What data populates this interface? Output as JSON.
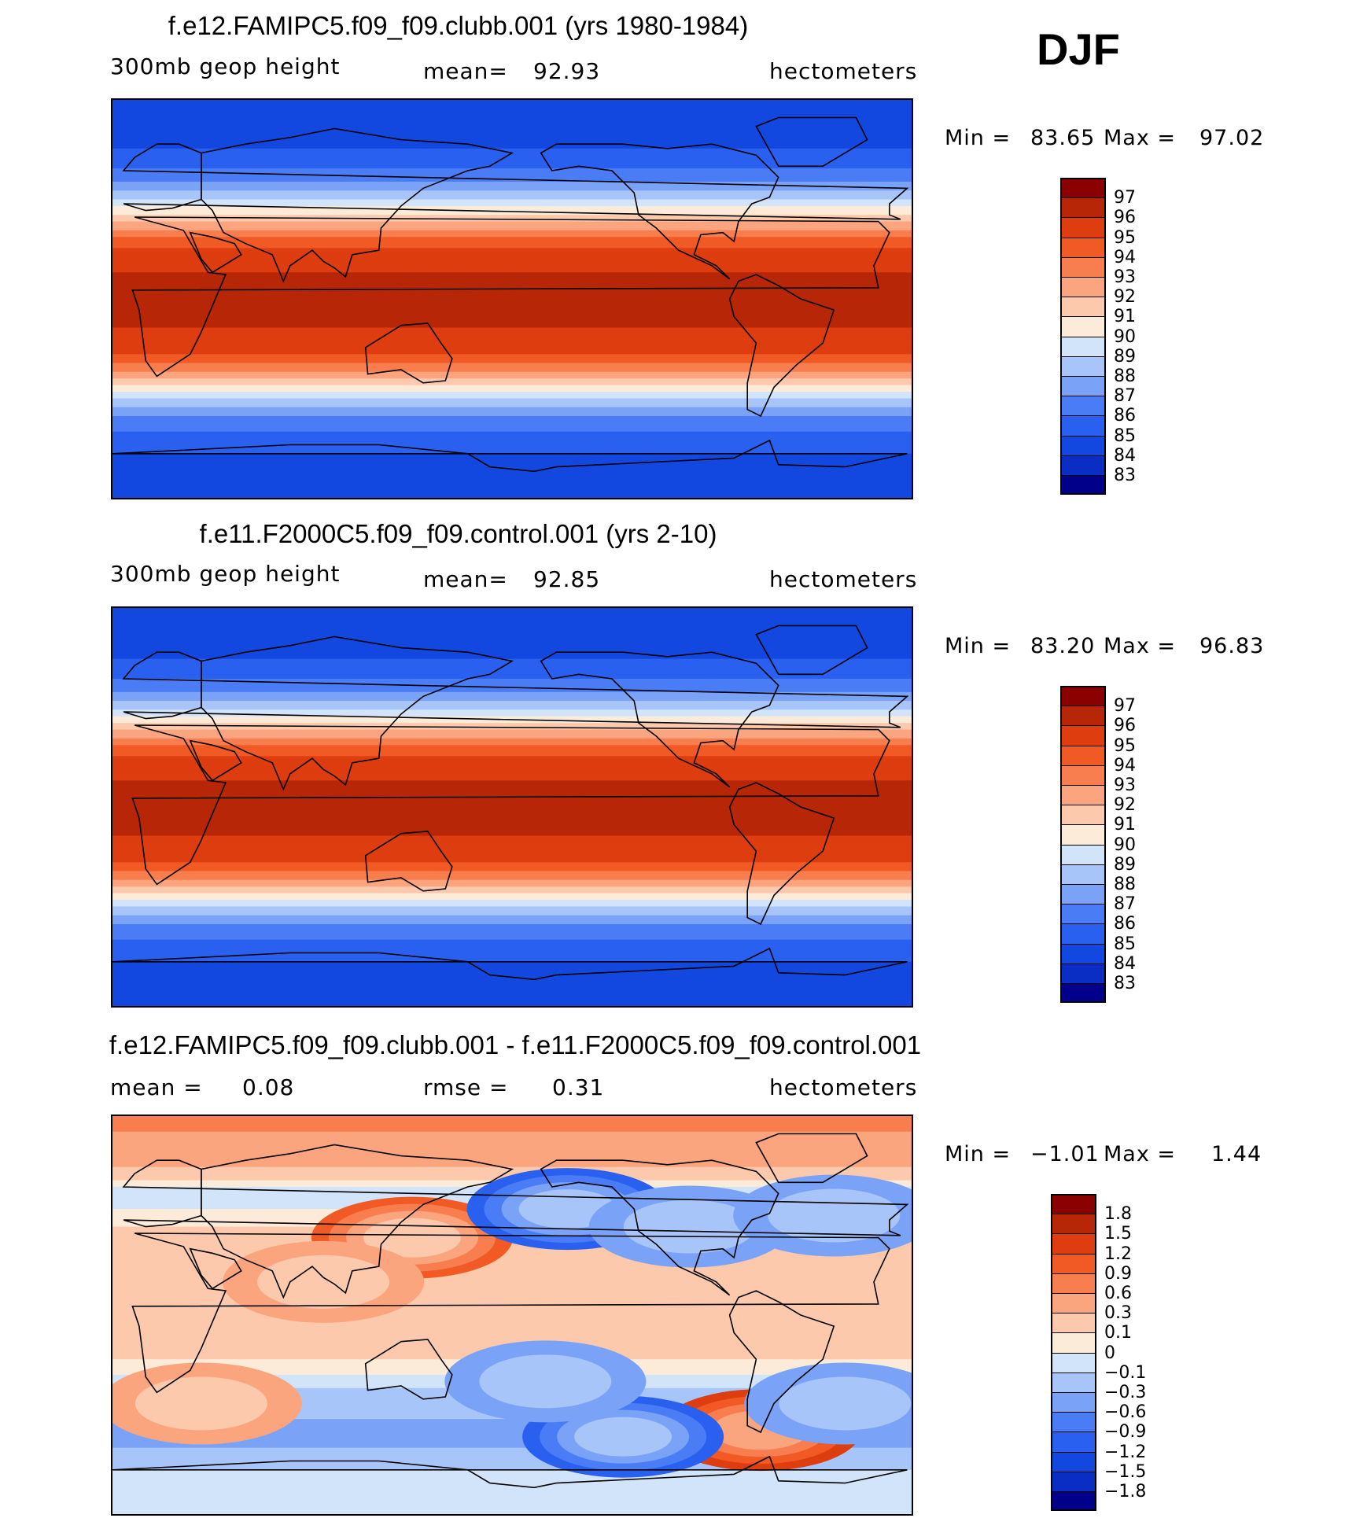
{
  "season": "DJF",
  "colors": {
    "abs_scale": [
      "#00008b",
      "#0a2dc4",
      "#1348e0",
      "#2a60f0",
      "#4a7cf5",
      "#7aa3f7",
      "#a7c5f8",
      "#d2e4fa",
      "#fdebd9",
      "#fcc9ad",
      "#fba57f",
      "#f97e4f",
      "#f25a25",
      "#de3d10",
      "#b82608",
      "#8b0000"
    ],
    "diff_scale": [
      "#00008b",
      "#0a2dc4",
      "#1348e0",
      "#2a60f0",
      "#4a7cf5",
      "#7aa3f7",
      "#a7c5f8",
      "#d2e4fa",
      "#fdebd9",
      "#fcc9ad",
      "#fba57f",
      "#f97e4f",
      "#f25a25",
      "#de3d10",
      "#b82608",
      "#8b0000"
    ],
    "land_outline": "#000000"
  },
  "chart_data": [
    {
      "type": "heatmap",
      "title": "f.e12.FAMIPC5.f09_f09.clubb.001 (yrs 1980-1984)",
      "variable": "300mb geop height",
      "mean_label": "mean=",
      "mean": "92.93",
      "units": "hectometers",
      "min_label": "Min =",
      "min": "83.65",
      "max_label": "Max =",
      "max": "97.02",
      "levels": [
        "83",
        "84",
        "85",
        "86",
        "87",
        "88",
        "89",
        "90",
        "91",
        "92",
        "93",
        "94",
        "95",
        "96",
        "97"
      ],
      "zonal_profile": [
        {
          "lat": 90,
          "value": 84.0
        },
        {
          "lat": 70,
          "value": 84.8
        },
        {
          "lat": 55,
          "value": 86.5
        },
        {
          "lat": 45,
          "value": 89.0
        },
        {
          "lat": 35,
          "value": 92.0
        },
        {
          "lat": 25,
          "value": 94.8
        },
        {
          "lat": 10,
          "value": 96.2
        },
        {
          "lat": -10,
          "value": 96.3
        },
        {
          "lat": -25,
          "value": 95.0
        },
        {
          "lat": -35,
          "value": 92.5
        },
        {
          "lat": -45,
          "value": 89.0
        },
        {
          "lat": -55,
          "value": 86.5
        },
        {
          "lat": -70,
          "value": 85.0
        },
        {
          "lat": -90,
          "value": 84.6
        }
      ]
    },
    {
      "type": "heatmap",
      "title": "f.e11.F2000C5.f09_f09.control.001 (yrs 2-10)",
      "variable": "300mb geop height",
      "mean_label": "mean=",
      "mean": "92.85",
      "units": "hectometers",
      "min_label": "Min =",
      "min": "83.20",
      "max_label": "Max =",
      "max": "96.83",
      "levels": [
        "83",
        "84",
        "85",
        "86",
        "87",
        "88",
        "89",
        "90",
        "91",
        "92",
        "93",
        "94",
        "95",
        "96",
        "97"
      ],
      "zonal_profile": [
        {
          "lat": 90,
          "value": 84.0
        },
        {
          "lat": 70,
          "value": 84.7
        },
        {
          "lat": 55,
          "value": 86.3
        },
        {
          "lat": 45,
          "value": 88.8
        },
        {
          "lat": 35,
          "value": 92.0
        },
        {
          "lat": 25,
          "value": 94.8
        },
        {
          "lat": 10,
          "value": 96.2
        },
        {
          "lat": -10,
          "value": 96.3
        },
        {
          "lat": -25,
          "value": 95.0
        },
        {
          "lat": -35,
          "value": 92.5
        },
        {
          "lat": -45,
          "value": 89.0
        },
        {
          "lat": -55,
          "value": 86.5
        },
        {
          "lat": -70,
          "value": 85.0
        },
        {
          "lat": -90,
          "value": 84.6
        }
      ]
    },
    {
      "type": "heatmap",
      "title": "f.e12.FAMIPC5.f09_f09.clubb.001 - f.e11.F2000C5.f09_f09.control.001",
      "mean_label": "mean =",
      "mean": "0.08",
      "rmse_label": "rmse =",
      "rmse": "0.31",
      "units": "hectometers",
      "min_label": "Min =",
      "min": "−1.01",
      "max_label": "Max =",
      "max": "1.44",
      "levels": [
        "−1.8",
        "−1.5",
        "−1.2",
        "−0.9",
        "−0.6",
        "−0.3",
        "−0.1",
        "0",
        "0.1",
        "0.3",
        "0.6",
        "0.9",
        "1.2",
        "1.5",
        "1.8"
      ],
      "zonal_profile": [
        {
          "lat": 90,
          "value": 0.7
        },
        {
          "lat": 70,
          "value": 0.4
        },
        {
          "lat": 55,
          "value": -0.1
        },
        {
          "lat": 40,
          "value": 0.1
        },
        {
          "lat": 20,
          "value": 0.15
        },
        {
          "lat": 0,
          "value": 0.12
        },
        {
          "lat": -20,
          "value": 0.1
        },
        {
          "lat": -40,
          "value": -0.2
        },
        {
          "lat": -55,
          "value": -0.4
        },
        {
          "lat": -70,
          "value": -0.1
        },
        {
          "lat": -90,
          "value": -0.05
        }
      ],
      "anomalies": [
        {
          "lon": 135,
          "lat": 35,
          "value": 0.9
        },
        {
          "lon": 205,
          "lat": 48,
          "value": -1.0
        },
        {
          "lon": 260,
          "lat": 40,
          "value": -0.6
        },
        {
          "lon": 292,
          "lat": -52,
          "value": 1.3
        },
        {
          "lon": 230,
          "lat": -55,
          "value": -1.0
        },
        {
          "lon": 195,
          "lat": -30,
          "value": -0.5
        },
        {
          "lon": 40,
          "lat": -40,
          "value": 0.5
        },
        {
          "lon": 330,
          "lat": -40,
          "value": -0.6
        },
        {
          "lon": 325,
          "lat": 45,
          "value": -0.5
        },
        {
          "lon": 95,
          "lat": 15,
          "value": 0.4
        }
      ]
    }
  ]
}
